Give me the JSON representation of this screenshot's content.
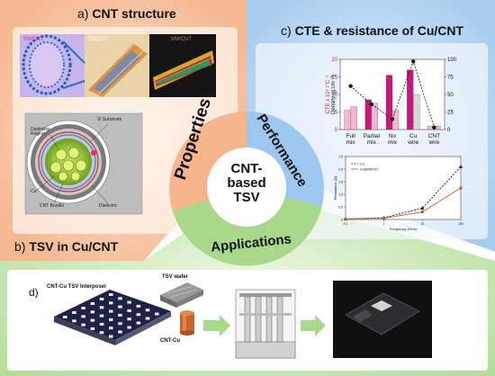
{
  "center": {
    "line1": "CNT-",
    "line2": "based",
    "line3": "TSV"
  },
  "wedges": {
    "properties": "Properties",
    "performance": "Performance",
    "applications": "Applications"
  },
  "panels": {
    "a": {
      "letter": "a)",
      "title": "CNT structure",
      "labels": [
        "SWCNT",
        "DWCNT",
        "MWCNT"
      ]
    },
    "b": {
      "letter": "b)",
      "title": "TSV in Cu/CNT",
      "labels": {
        "depletion": "Depletion Region",
        "si": "Si Substrate",
        "cu": "Cu",
        "bundle": "CNT Bundle",
        "dielectric": "Dielectric"
      }
    },
    "c": {
      "letter": "c)",
      "title": "CTE & resistance of Cu/CNT"
    },
    "d": {
      "letter": "d)",
      "interposer": "CNT-Cu TSV Interposer",
      "wafer": "TSV wafer",
      "cntcu": "CNT-Cu"
    }
  },
  "colors": {
    "orange": "#f8c9a8",
    "blue": "#b7d6f4",
    "green": "#c6e6b0",
    "magenta": "#c8177a",
    "pink": "#f3b5cf"
  },
  "chart_data": [
    {
      "type": "bar",
      "categories": [
        "Full mix",
        "Partial mix",
        "No mix",
        "Cu wire",
        "CNT wire"
      ],
      "ylim": [
        0,
        20
      ],
      "y2lim": [
        0,
        100
      ],
      "ylabel": "CTE x 10⁶ /°C⁻¹",
      "y2label": "Density (g.cm⁻³)",
      "yticks": [
        0,
        5,
        10,
        15,
        20
      ],
      "y2ticks": [
        0,
        25,
        50,
        75,
        100
      ],
      "series": [
        {
          "values": [
            5.5,
            8.5,
            15.5,
            17,
            1
          ]
        },
        {
          "values": [
            6.5,
            7.5,
            5.5,
            10,
            1
          ]
        }
      ],
      "line": [
        62,
        36,
        15,
        97,
        3
      ]
    },
    {
      "type": "line",
      "ylabel": "Resistance (Ω)",
      "xlabel": "Frequency (GHz)",
      "xticks": [
        "0.1",
        "1",
        "10",
        "100"
      ],
      "yticks": [
        "0",
        "0.5",
        "1.0",
        "1.5",
        "2.0",
        "2.5"
      ],
      "ylim": [
        0,
        2.5
      ],
      "series": [
        {
          "name": "Cu",
          "x": [
            0,
            1,
            2,
            3
          ],
          "y": [
            0.02,
            0.07,
            0.45,
            2.1
          ]
        },
        {
          "name": "Cu/MWCNT",
          "x": [
            0,
            1,
            2,
            3
          ],
          "y": [
            0.02,
            0.05,
            0.3,
            1.25
          ]
        }
      ]
    }
  ]
}
